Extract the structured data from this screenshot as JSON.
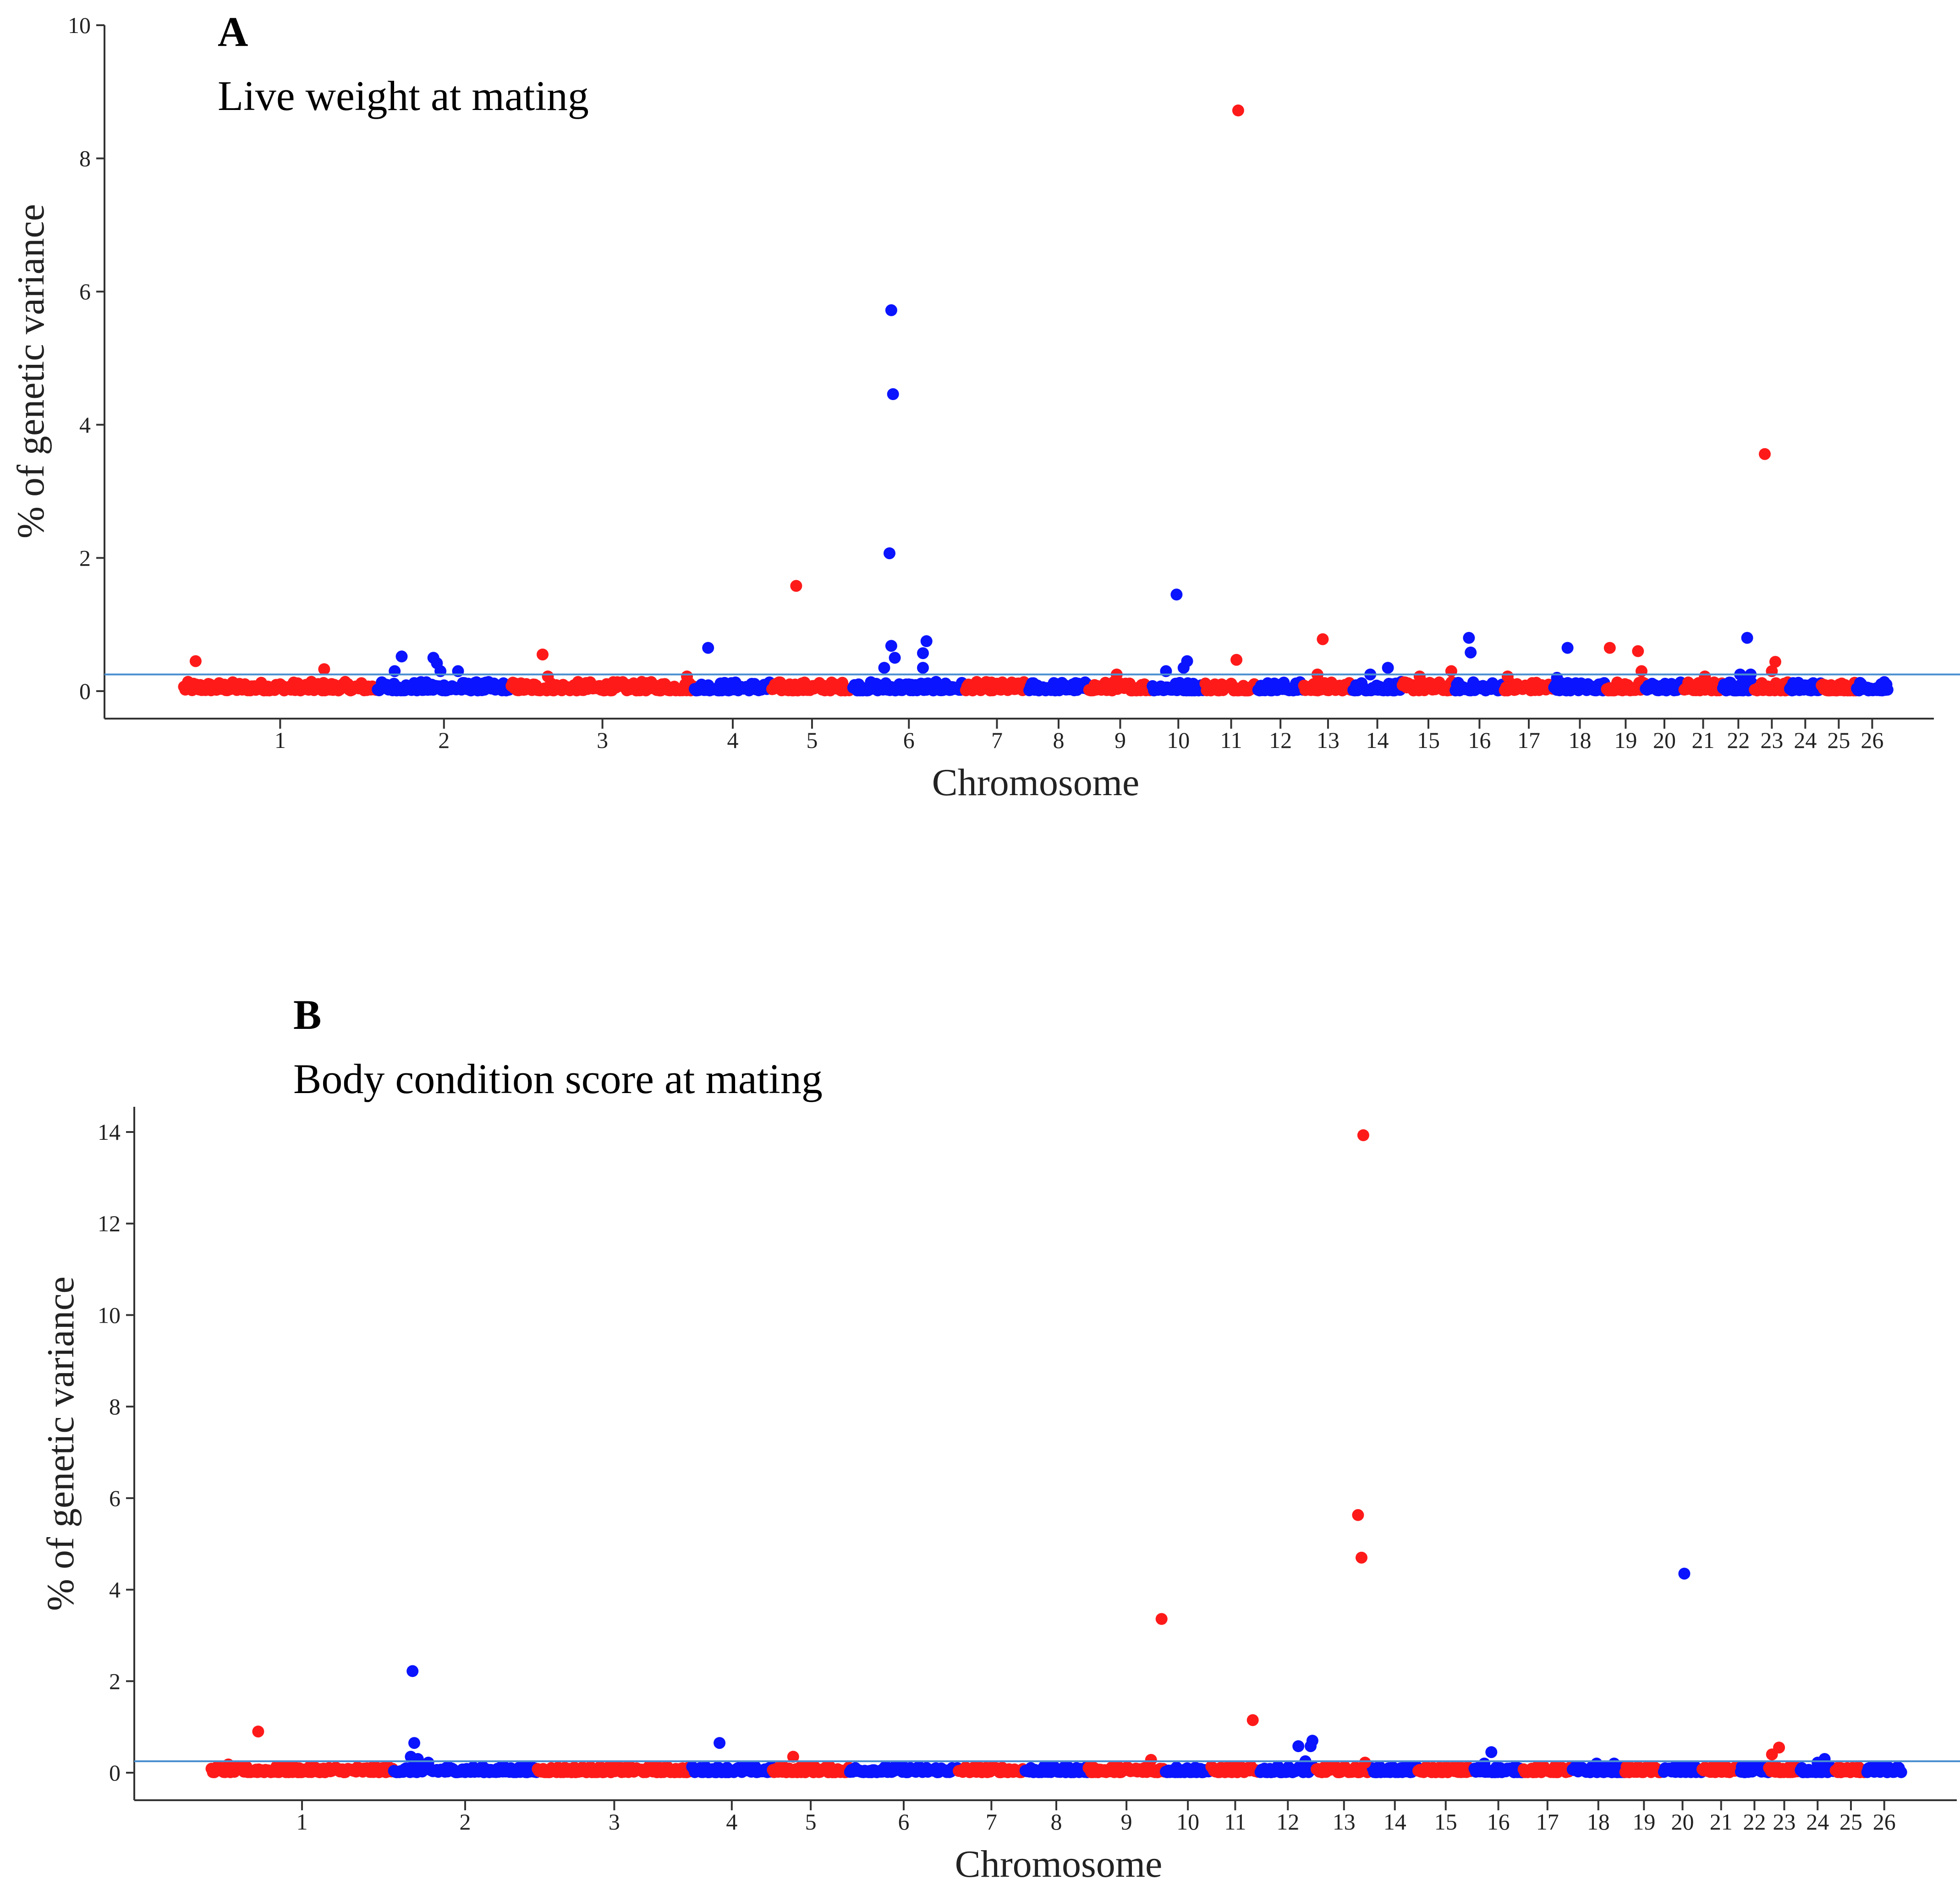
{
  "colors": {
    "red": "#ff1a1a",
    "blue": "#0a14ff",
    "threshold": "#4a8fd0"
  },
  "chart_data": [
    {
      "type": "scatter",
      "panel": "A",
      "title": "Live weight at mating",
      "xlabel": "Chromosome",
      "ylabel": "% of genetic variance",
      "ylim": [
        0,
        10
      ],
      "yticks": [
        0,
        2,
        4,
        6,
        8,
        10
      ],
      "threshold": 0.25,
      "chromosomes": [
        {
          "label": "1",
          "start": 0,
          "end": 5.5
        },
        {
          "label": "2",
          "start": 5.5,
          "end": 9.3
        },
        {
          "label": "3",
          "start": 9.3,
          "end": 14.5
        },
        {
          "label": "4",
          "start": 14.5,
          "end": 16.7
        },
        {
          "label": "5",
          "start": 16.7,
          "end": 19.0
        },
        {
          "label": "6",
          "start": 19.0,
          "end": 22.2
        },
        {
          "label": "7",
          "start": 22.2,
          "end": 24.0
        },
        {
          "label": "8",
          "start": 24.0,
          "end": 25.7
        },
        {
          "label": "9",
          "start": 25.7,
          "end": 27.5
        },
        {
          "label": "10",
          "start": 27.5,
          "end": 29.0
        },
        {
          "label": "11",
          "start": 29.0,
          "end": 30.5
        },
        {
          "label": "12",
          "start": 30.5,
          "end": 31.8
        },
        {
          "label": "13",
          "start": 31.8,
          "end": 33.2
        },
        {
          "label": "14",
          "start": 33.2,
          "end": 34.6
        },
        {
          "label": "15",
          "start": 34.6,
          "end": 36.1
        },
        {
          "label": "16",
          "start": 36.1,
          "end": 37.5
        },
        {
          "label": "17",
          "start": 37.5,
          "end": 38.9
        },
        {
          "label": "18",
          "start": 38.9,
          "end": 40.4
        },
        {
          "label": "19",
          "start": 40.4,
          "end": 41.5
        },
        {
          "label": "20",
          "start": 41.5,
          "end": 42.6
        },
        {
          "label": "21",
          "start": 42.6,
          "end": 43.7
        },
        {
          "label": "22",
          "start": 43.7,
          "end": 44.6
        },
        {
          "label": "23",
          "start": 44.6,
          "end": 45.6
        },
        {
          "label": "24",
          "start": 45.6,
          "end": 46.5
        },
        {
          "label": "25",
          "start": 46.5,
          "end": 47.5
        },
        {
          "label": "26",
          "start": 47.5,
          "end": 48.4
        }
      ],
      "peaks": [
        {
          "x": 0.35,
          "y": 0.45
        },
        {
          "x": 4.0,
          "y": 0.33
        },
        {
          "x": 6.2,
          "y": 0.52
        },
        {
          "x": 6.0,
          "y": 0.3
        },
        {
          "x": 7.1,
          "y": 0.5
        },
        {
          "x": 7.2,
          "y": 0.42
        },
        {
          "x": 7.3,
          "y": 0.3
        },
        {
          "x": 7.8,
          "y": 0.3
        },
        {
          "x": 10.2,
          "y": 0.55
        },
        {
          "x": 10.35,
          "y": 0.22
        },
        {
          "x": 14.3,
          "y": 0.22
        },
        {
          "x": 14.9,
          "y": 0.65
        },
        {
          "x": 17.4,
          "y": 1.58
        },
        {
          "x": 20.05,
          "y": 2.07
        },
        {
          "x": 20.1,
          "y": 5.72
        },
        {
          "x": 20.15,
          "y": 4.46
        },
        {
          "x": 20.1,
          "y": 0.68
        },
        {
          "x": 20.2,
          "y": 0.5
        },
        {
          "x": 19.9,
          "y": 0.35
        },
        {
          "x": 21.0,
          "y": 0.57
        },
        {
          "x": 21.1,
          "y": 0.75
        },
        {
          "x": 21.0,
          "y": 0.35
        },
        {
          "x": 26.5,
          "y": 0.25
        },
        {
          "x": 27.9,
          "y": 0.3
        },
        {
          "x": 28.2,
          "y": 1.45
        },
        {
          "x": 28.5,
          "y": 0.45
        },
        {
          "x": 28.4,
          "y": 0.35
        },
        {
          "x": 29.95,
          "y": 8.72
        },
        {
          "x": 29.9,
          "y": 0.47
        },
        {
          "x": 32.2,
          "y": 0.25
        },
        {
          "x": 32.35,
          "y": 0.78
        },
        {
          "x": 33.7,
          "y": 0.25
        },
        {
          "x": 34.2,
          "y": 0.35
        },
        {
          "x": 35.1,
          "y": 0.22
        },
        {
          "x": 36.0,
          "y": 0.3
        },
        {
          "x": 36.5,
          "y": 0.8
        },
        {
          "x": 36.55,
          "y": 0.58
        },
        {
          "x": 37.6,
          "y": 0.22
        },
        {
          "x": 39.0,
          "y": 0.2
        },
        {
          "x": 39.3,
          "y": 0.65
        },
        {
          "x": 40.5,
          "y": 0.65
        },
        {
          "x": 41.3,
          "y": 0.6
        },
        {
          "x": 41.4,
          "y": 0.3
        },
        {
          "x": 43.2,
          "y": 0.22
        },
        {
          "x": 44.4,
          "y": 0.8
        },
        {
          "x": 44.2,
          "y": 0.25
        },
        {
          "x": 44.5,
          "y": 0.25
        },
        {
          "x": 44.9,
          "y": 3.56
        },
        {
          "x": 45.2,
          "y": 0.44
        },
        {
          "x": 45.1,
          "y": 0.3
        }
      ]
    },
    {
      "type": "scatter",
      "panel": "B",
      "title": "Body condition score at mating",
      "xlabel": "Chromosome",
      "ylabel": "% of genetic variance",
      "ylim": [
        0,
        14.5
      ],
      "yticks": [
        0,
        2,
        4,
        6,
        8,
        10,
        12,
        14
      ],
      "threshold": 0.25,
      "chromosomes": [
        {
          "label": "1",
          "start": 0,
          "end": 5.2
        },
        {
          "label": "2",
          "start": 5.2,
          "end": 9.3
        },
        {
          "label": "3",
          "start": 9.3,
          "end": 13.7
        },
        {
          "label": "4",
          "start": 13.7,
          "end": 16.0
        },
        {
          "label": "5",
          "start": 16.0,
          "end": 18.2
        },
        {
          "label": "6",
          "start": 18.2,
          "end": 21.3
        },
        {
          "label": "7",
          "start": 21.3,
          "end": 23.2
        },
        {
          "label": "8",
          "start": 23.2,
          "end": 25.0
        },
        {
          "label": "9",
          "start": 25.0,
          "end": 27.2
        },
        {
          "label": "10",
          "start": 27.2,
          "end": 28.5
        },
        {
          "label": "11",
          "start": 28.5,
          "end": 29.9
        },
        {
          "label": "12",
          "start": 29.9,
          "end": 31.5
        },
        {
          "label": "13",
          "start": 31.5,
          "end": 33.1
        },
        {
          "label": "14",
          "start": 33.1,
          "end": 34.4
        },
        {
          "label": "15",
          "start": 34.4,
          "end": 36.0
        },
        {
          "label": "16",
          "start": 36.0,
          "end": 37.4
        },
        {
          "label": "17",
          "start": 37.4,
          "end": 38.8
        },
        {
          "label": "18",
          "start": 38.8,
          "end": 40.3
        },
        {
          "label": "19",
          "start": 40.3,
          "end": 41.4
        },
        {
          "label": "20",
          "start": 41.4,
          "end": 42.5
        },
        {
          "label": "21",
          "start": 42.5,
          "end": 43.6
        },
        {
          "label": "22",
          "start": 43.6,
          "end": 44.4
        },
        {
          "label": "23",
          "start": 44.4,
          "end": 45.3
        },
        {
          "label": "24",
          "start": 45.3,
          "end": 46.3
        },
        {
          "label": "25",
          "start": 46.3,
          "end": 47.2
        },
        {
          "label": "26",
          "start": 47.2,
          "end": 48.2
        }
      ],
      "peaks": [
        {
          "x": 1.35,
          "y": 0.9
        },
        {
          "x": 0.5,
          "y": 0.18
        },
        {
          "x": 5.75,
          "y": 2.22
        },
        {
          "x": 5.8,
          "y": 0.65
        },
        {
          "x": 5.7,
          "y": 0.35
        },
        {
          "x": 5.9,
          "y": 0.3
        },
        {
          "x": 6.2,
          "y": 0.22
        },
        {
          "x": 14.5,
          "y": 0.65
        },
        {
          "x": 16.6,
          "y": 0.35
        },
        {
          "x": 26.8,
          "y": 0.28
        },
        {
          "x": 27.1,
          "y": 3.36
        },
        {
          "x": 29.7,
          "y": 1.15
        },
        {
          "x": 31.0,
          "y": 0.58
        },
        {
          "x": 31.4,
          "y": 0.7
        },
        {
          "x": 31.35,
          "y": 0.58
        },
        {
          "x": 31.2,
          "y": 0.25
        },
        {
          "x": 32.7,
          "y": 5.63
        },
        {
          "x": 32.8,
          "y": 4.7
        },
        {
          "x": 32.85,
          "y": 13.93
        },
        {
          "x": 32.9,
          "y": 0.22
        },
        {
          "x": 36.5,
          "y": 0.45
        },
        {
          "x": 36.3,
          "y": 0.2
        },
        {
          "x": 39.5,
          "y": 0.2
        },
        {
          "x": 40.0,
          "y": 0.2
        },
        {
          "x": 42.0,
          "y": 4.35
        },
        {
          "x": 44.5,
          "y": 0.4
        },
        {
          "x": 44.7,
          "y": 0.55
        },
        {
          "x": 46.0,
          "y": 0.3
        },
        {
          "x": 45.8,
          "y": 0.22
        }
      ]
    }
  ]
}
